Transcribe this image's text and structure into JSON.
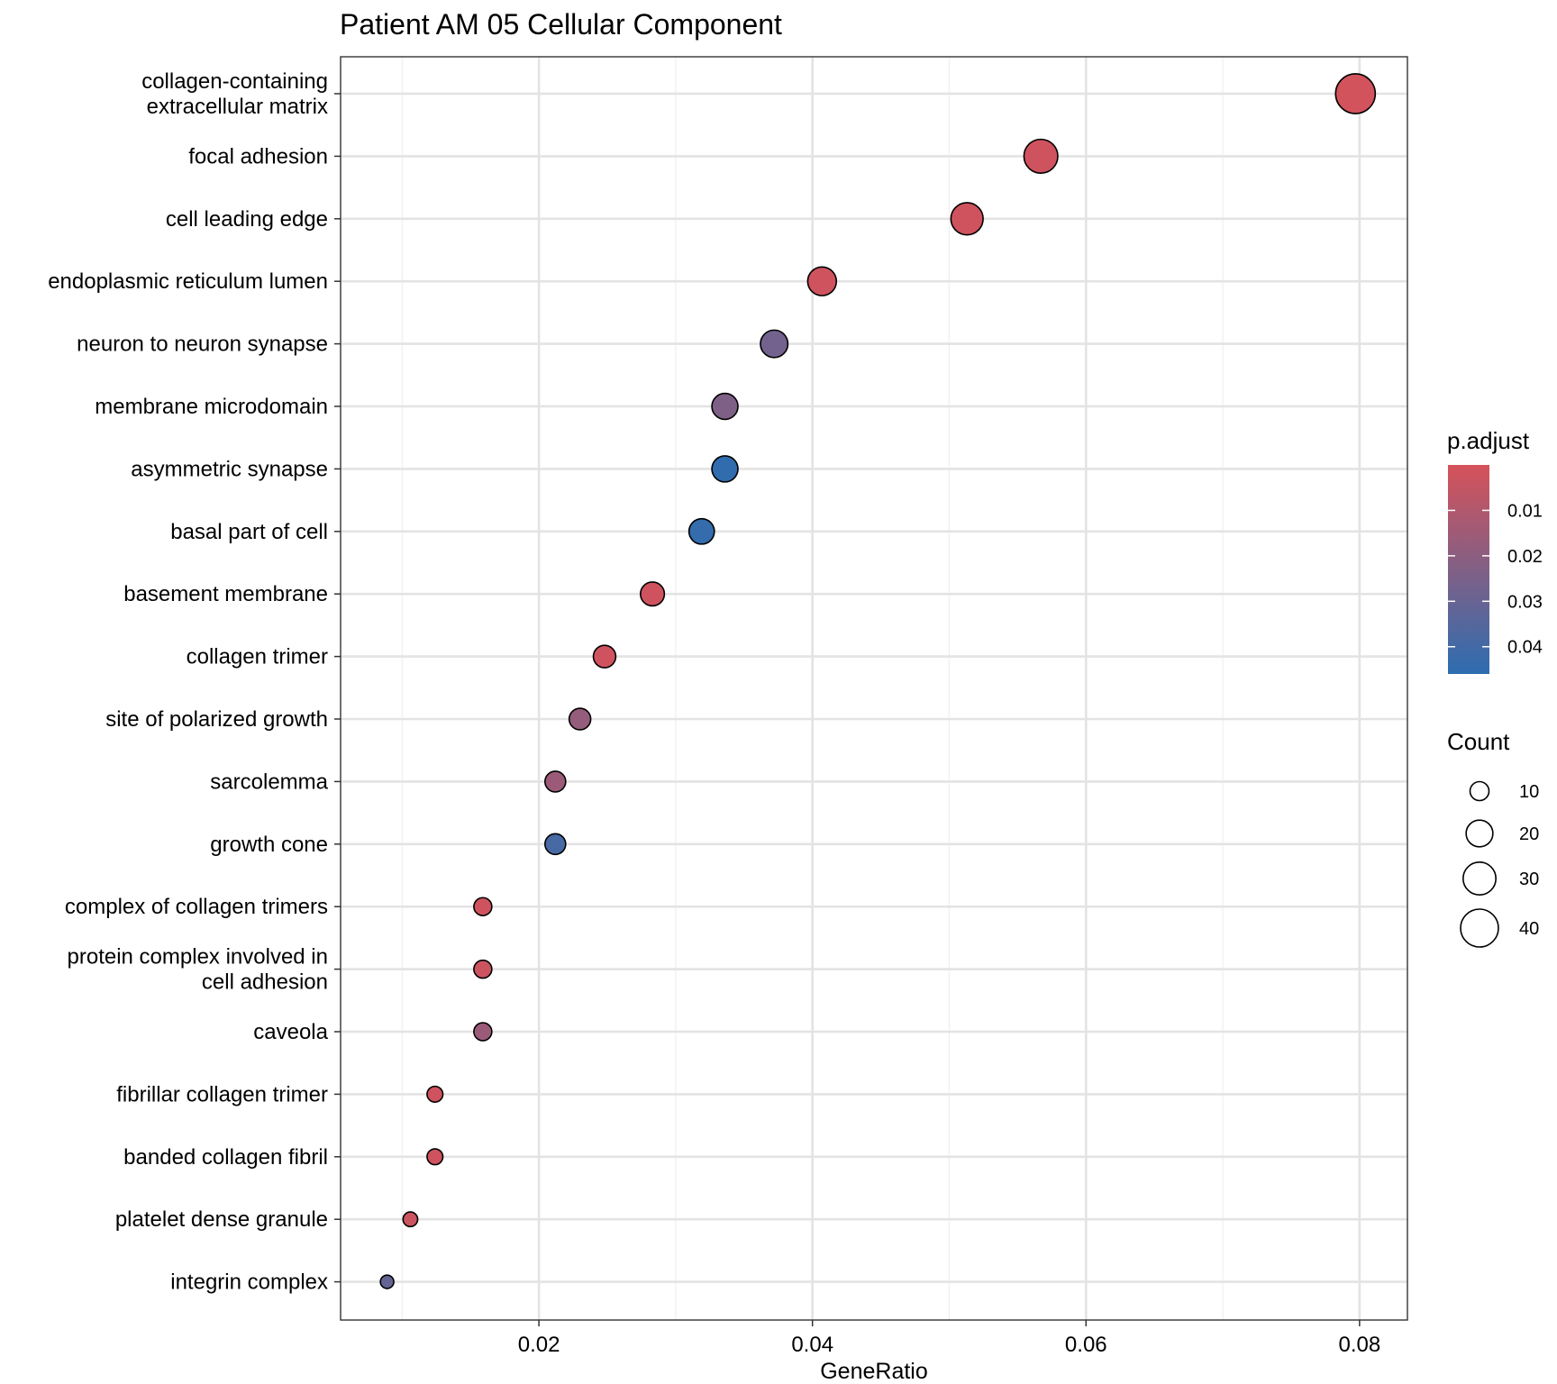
{
  "chart_data": {
    "type": "scatter",
    "title": "Patient AM 05 Cellular Component",
    "xlabel": "GeneRatio",
    "ylabel": "",
    "xlim": [
      0.0055,
      0.0835
    ],
    "x_major_ticks": [
      0.02,
      0.04,
      0.06,
      0.08
    ],
    "x_tick_labels": [
      "0.02",
      "0.04",
      "0.06",
      "0.08"
    ],
    "x_minor_ticks": [
      0.01,
      0.03,
      0.05,
      0.07
    ],
    "grid": true,
    "legend_position": "right",
    "categories": [
      {
        "label": [
          "collagen-containing",
          "extracellular matrix"
        ],
        "gene_ratio": 0.0797,
        "count": 44,
        "p_adjust": 0.001
      },
      {
        "label": [
          "focal adhesion"
        ],
        "gene_ratio": 0.0567,
        "count": 32,
        "p_adjust": 0.002
      },
      {
        "label": [
          "cell leading edge"
        ],
        "gene_ratio": 0.0513,
        "count": 29,
        "p_adjust": 0.002
      },
      {
        "label": [
          "endoplasmic reticulum lumen"
        ],
        "gene_ratio": 0.0407,
        "count": 23,
        "p_adjust": 0.002
      },
      {
        "label": [
          "neuron to neuron synapse"
        ],
        "gene_ratio": 0.0372,
        "count": 21,
        "p_adjust": 0.027
      },
      {
        "label": [
          "membrane microdomain"
        ],
        "gene_ratio": 0.0336,
        "count": 19,
        "p_adjust": 0.024
      },
      {
        "label": [
          "asymmetric synapse"
        ],
        "gene_ratio": 0.0336,
        "count": 19,
        "p_adjust": 0.045
      },
      {
        "label": [
          "basal part of cell"
        ],
        "gene_ratio": 0.0319,
        "count": 18,
        "p_adjust": 0.044
      },
      {
        "label": [
          "basement membrane"
        ],
        "gene_ratio": 0.0283,
        "count": 16,
        "p_adjust": 0.002
      },
      {
        "label": [
          "collagen trimer"
        ],
        "gene_ratio": 0.0248,
        "count": 14,
        "p_adjust": 0.002
      },
      {
        "label": [
          "site of polarized growth"
        ],
        "gene_ratio": 0.023,
        "count": 13,
        "p_adjust": 0.018
      },
      {
        "label": [
          "sarcolemma"
        ],
        "gene_ratio": 0.0212,
        "count": 12,
        "p_adjust": 0.016
      },
      {
        "label": [
          "growth cone"
        ],
        "gene_ratio": 0.0212,
        "count": 12,
        "p_adjust": 0.039
      },
      {
        "label": [
          "complex of collagen trimers"
        ],
        "gene_ratio": 0.0159,
        "count": 9,
        "p_adjust": 0.002
      },
      {
        "label": [
          "protein complex involved in",
          "cell adhesion"
        ],
        "gene_ratio": 0.0159,
        "count": 9,
        "p_adjust": 0.003
      },
      {
        "label": [
          "caveola"
        ],
        "gene_ratio": 0.0159,
        "count": 9,
        "p_adjust": 0.016
      },
      {
        "label": [
          "fibrillar collagen trimer"
        ],
        "gene_ratio": 0.0124,
        "count": 7,
        "p_adjust": 0.002
      },
      {
        "label": [
          "banded collagen fibril"
        ],
        "gene_ratio": 0.0124,
        "count": 7,
        "p_adjust": 0.002
      },
      {
        "label": [
          "platelet dense granule"
        ],
        "gene_ratio": 0.0106,
        "count": 6,
        "p_adjust": 0.003
      },
      {
        "label": [
          "integrin complex"
        ],
        "gene_ratio": 0.0089,
        "count": 5,
        "p_adjust": 0.031
      }
    ],
    "color_legend": {
      "title": "p.adjust",
      "low_color": "#D6525A",
      "high_color": "#2D6DB1",
      "range": [
        0,
        0.046
      ],
      "ticks": [
        0.01,
        0.02,
        0.03,
        0.04
      ],
      "tick_labels": [
        "0.01",
        "0.02",
        "0.03",
        "0.04"
      ]
    },
    "size_legend": {
      "title": "Count",
      "values": [
        10,
        20,
        30,
        40
      ],
      "labels": [
        "10",
        "20",
        "30",
        "40"
      ]
    }
  }
}
